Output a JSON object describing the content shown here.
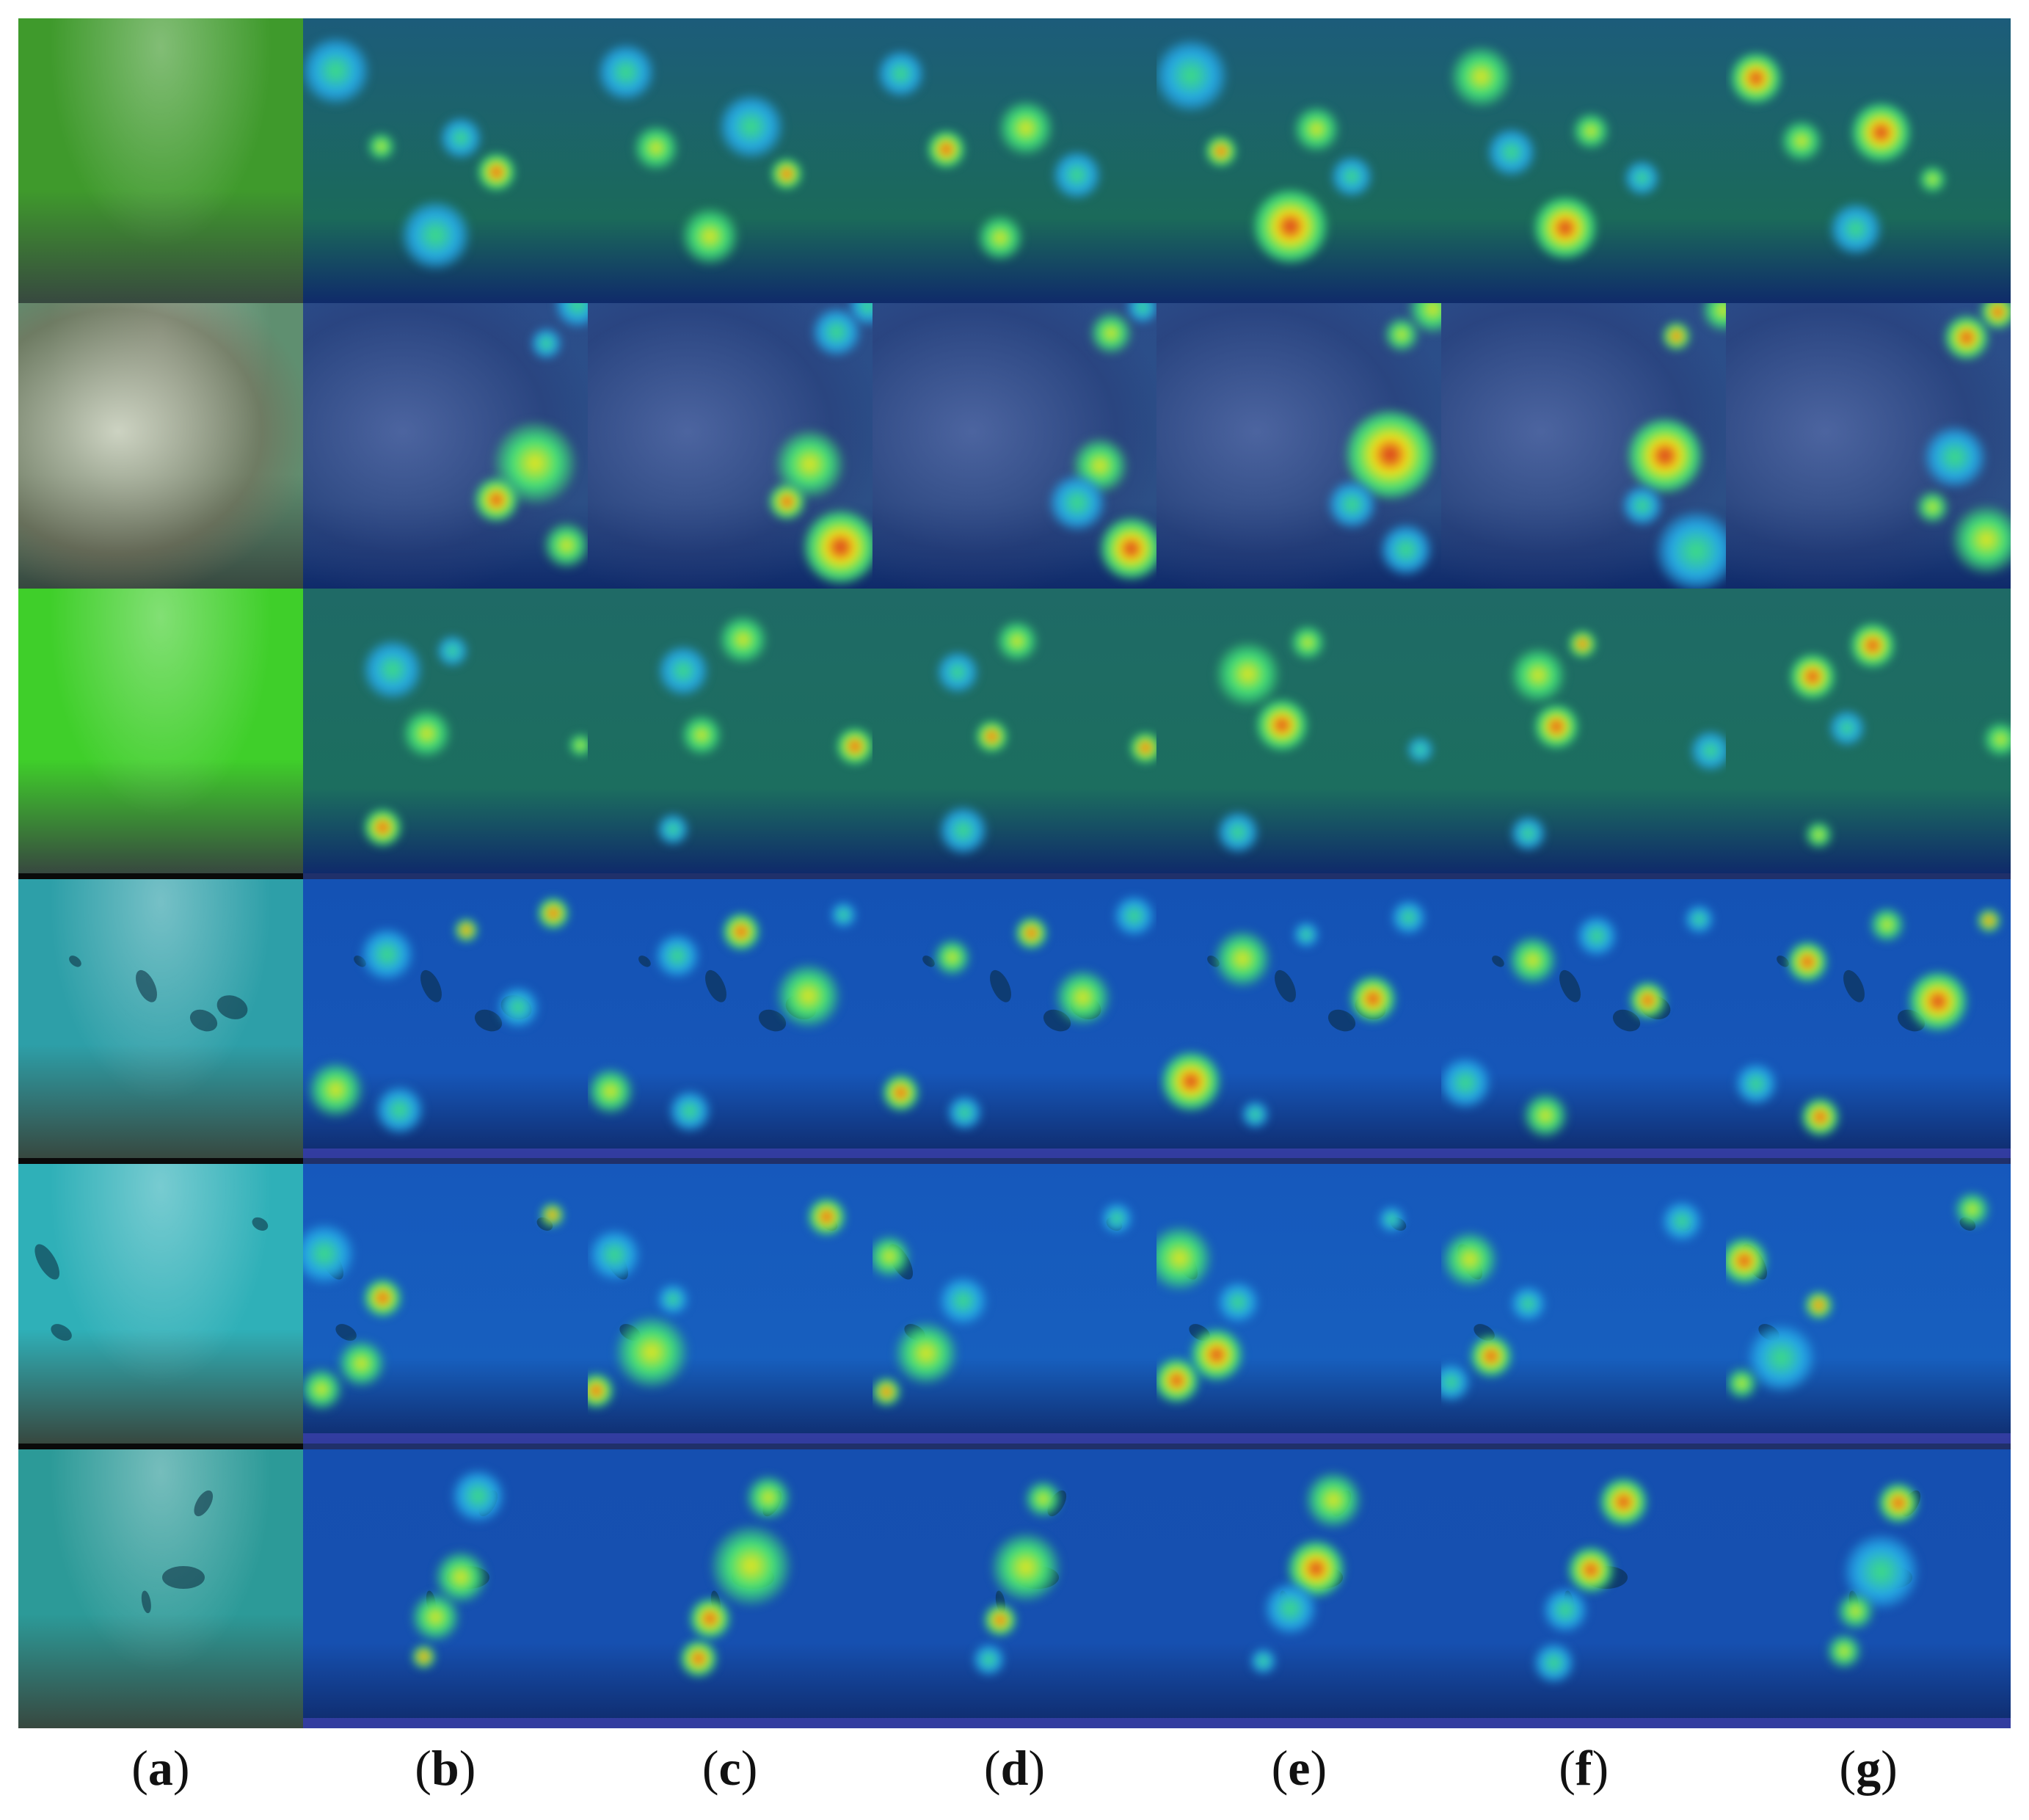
{
  "columns": [
    "(a)",
    "(b)",
    "(c)",
    "(d)",
    "(e)",
    "(f)",
    "(g)"
  ],
  "columns_parts": [
    {
      "open": "(",
      "letter": "a",
      "close": ")"
    },
    {
      "open": "(",
      "letter": "b",
      "close": ")"
    },
    {
      "open": "(",
      "letter": "c",
      "close": ")"
    },
    {
      "open": "(",
      "letter": "d",
      "close": ")"
    },
    {
      "open": "(",
      "letter": "e",
      "close": ")"
    },
    {
      "open": "(",
      "letter": "f",
      "close": ")"
    },
    {
      "open": "(",
      "letter": "g",
      "close": ")"
    }
  ],
  "rows": [
    {
      "scene": "green-seabed-shells",
      "base": "#3f9a2c",
      "overlay": "#1b6a5a",
      "heat_base": "#1c5c7a"
    },
    {
      "scene": "rock-reef",
      "base": "#5f8f70",
      "overlay": "#2c4f86",
      "heat_base": "#2b4d8a"
    },
    {
      "scene": "green-water-fish",
      "base": "#3fcf2a",
      "overlay": "#1c6e5f",
      "heat_base": "#1f6a66"
    },
    {
      "scene": "open-water-school",
      "base": "#2d9fa8",
      "overlay": "#1656b8",
      "heat_base": "#1452b4"
    },
    {
      "scene": "open-water-sparse",
      "base": "#2fb0b8",
      "overlay": "#175fbe",
      "heat_base": "#1658bc"
    },
    {
      "scene": "pier-pillars-fish",
      "base": "#2c9a98",
      "overlay": "#1650b0",
      "heat_base": "#154fb0"
    }
  ],
  "colors": {
    "hot": "#d81e1e",
    "warm": "#f2e418",
    "mid": "#3fe07a",
    "cool": "#25a8e8"
  }
}
